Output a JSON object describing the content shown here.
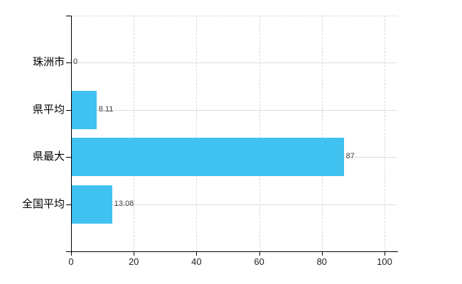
{
  "chart_data": {
    "type": "bar",
    "orientation": "horizontal",
    "title": "",
    "xlabel": "",
    "ylabel": "",
    "categories": [
      "珠洲市",
      "県平均",
      "県最大",
      "全国平均"
    ],
    "values": [
      0,
      8.11,
      87,
      13.08
    ],
    "value_labels": [
      "0",
      "8.11",
      "87",
      "13.08"
    ],
    "xlim": [
      0,
      100
    ],
    "x_ticks": [
      0,
      20,
      40,
      60,
      80,
      100
    ],
    "x_tick_labels": [
      "0",
      "20",
      "40",
      "60",
      "80",
      "100"
    ],
    "grid": true,
    "legend": "none",
    "colors": {
      "bar_fill": "#3fc2f0",
      "axis_line": "#000000",
      "vertical_grid": "#d9d9d9",
      "horizontal_grid": "#dcdcdc",
      "value_label_text": "#3d3d3d",
      "tick_label_text": "#222222",
      "category_label_text": "#000000",
      "background": "#ffffff"
    }
  }
}
